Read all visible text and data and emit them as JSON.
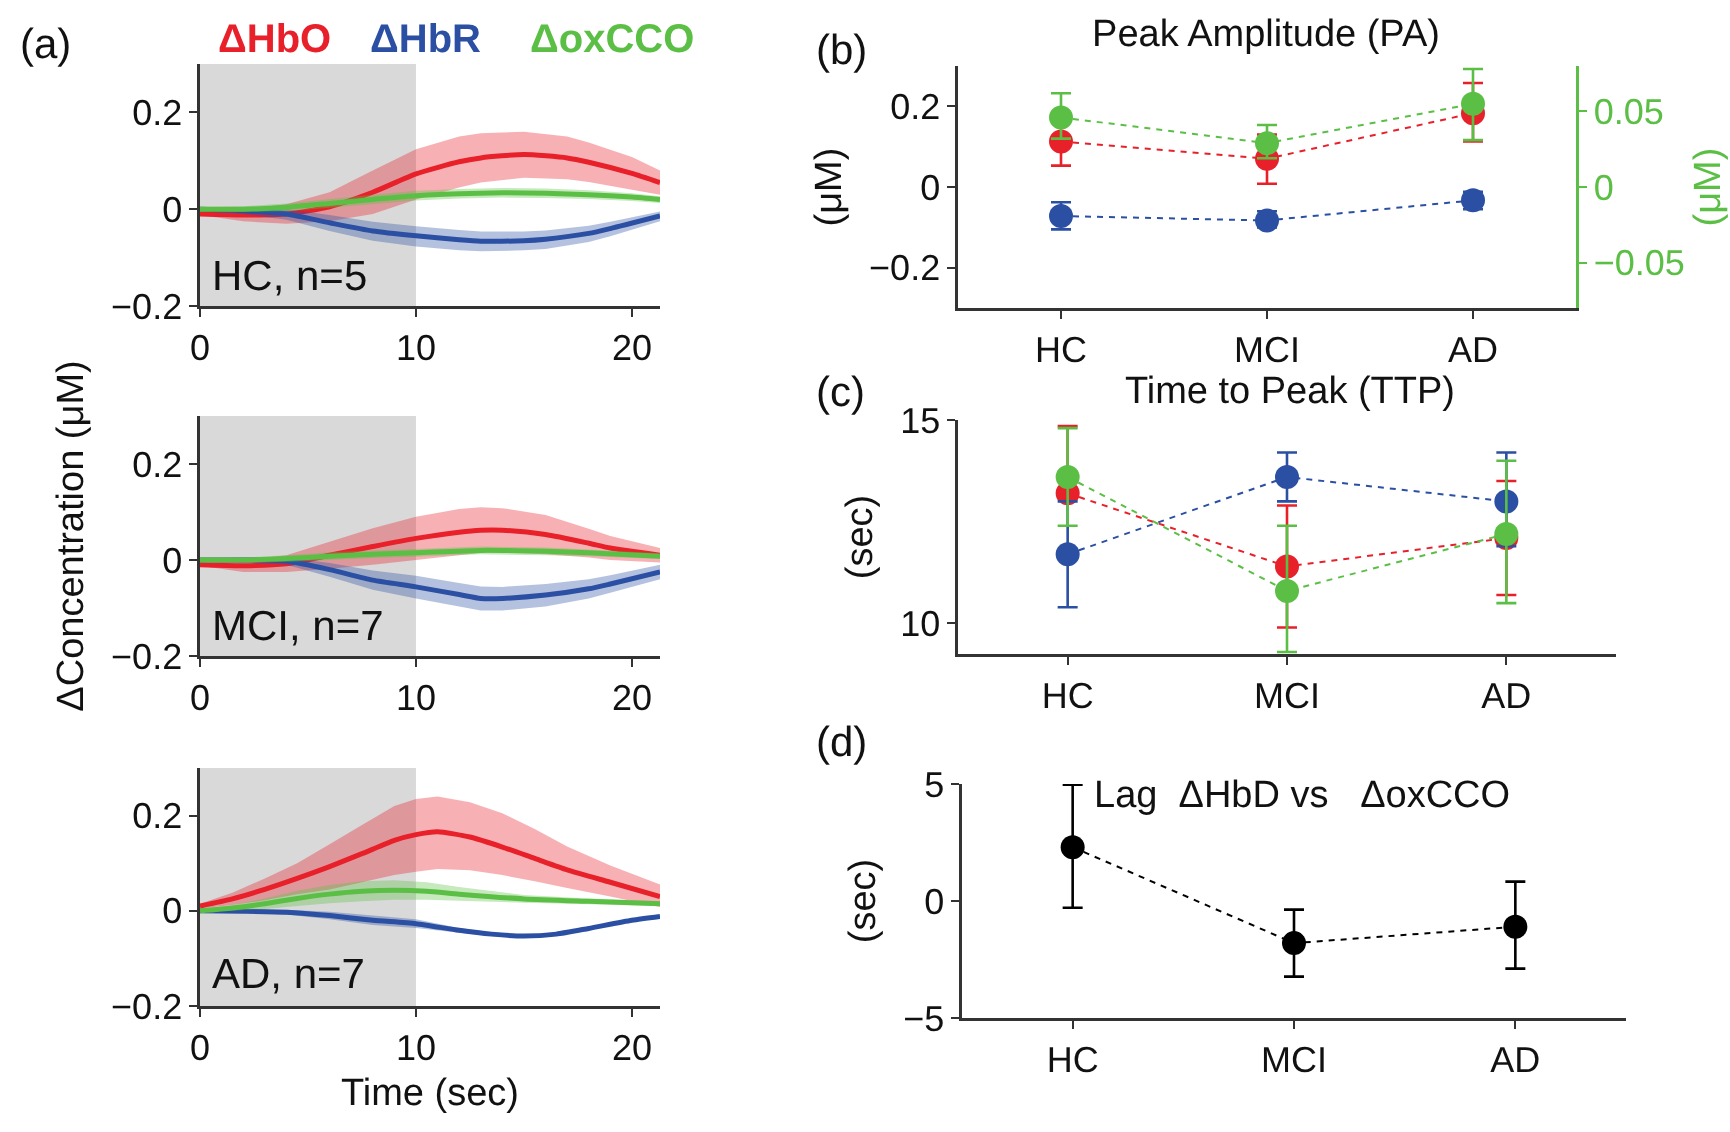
{
  "chart_data": [
    {
      "type": "line",
      "annotations": [
        "(a)",
        "HC, n=5"
      ],
      "xlim": [
        0,
        21.3
      ],
      "xticks": [
        0,
        10,
        20
      ],
      "ylim": [
        -0.2,
        0.3
      ],
      "yticks": [
        -0.2,
        0,
        0.2
      ],
      "marker": "none",
      "line_style": "solid",
      "bands": [
        {
          "axis": "x",
          "from": 0,
          "to": 10,
          "color": "#d9d9d9"
        }
      ],
      "series": [
        {
          "name": "ΔHbO",
          "color": "#e8202a",
          "x": [
            0,
            2,
            4,
            6,
            8,
            10,
            12,
            13,
            15,
            17,
            18,
            20,
            21.3
          ],
          "values": [
            -0.01,
            -0.012,
            -0.01,
            0.005,
            0.035,
            0.073,
            0.098,
            0.106,
            0.113,
            0.106,
            0.097,
            0.074,
            0.055
          ],
          "lower": [
            -0.012,
            -0.025,
            -0.03,
            -0.025,
            -0.01,
            0.02,
            0.045,
            0.055,
            0.065,
            0.062,
            0.056,
            0.04,
            0.03
          ],
          "upper": [
            -0.008,
            0.0,
            0.01,
            0.035,
            0.08,
            0.124,
            0.15,
            0.157,
            0.16,
            0.15,
            0.138,
            0.108,
            0.08
          ]
        },
        {
          "name": "ΔHbR",
          "color": "#2b4fa3",
          "x": [
            0,
            2,
            4,
            6,
            8,
            10,
            12,
            13,
            15,
            16,
            18,
            19,
            21.3
          ],
          "values": [
            0.0,
            -0.003,
            -0.01,
            -0.028,
            -0.045,
            -0.055,
            -0.063,
            -0.066,
            -0.065,
            -0.062,
            -0.05,
            -0.04,
            -0.014
          ],
          "lower": [
            -0.003,
            -0.01,
            -0.022,
            -0.045,
            -0.065,
            -0.077,
            -0.085,
            -0.087,
            -0.085,
            -0.082,
            -0.068,
            -0.056,
            -0.025
          ],
          "upper": [
            0.003,
            0.004,
            0.0,
            -0.012,
            -0.026,
            -0.035,
            -0.043,
            -0.046,
            -0.046,
            -0.044,
            -0.034,
            -0.026,
            -0.005
          ]
        },
        {
          "name": "ΔoxCCO",
          "color": "#5bbf45",
          "x": [
            0,
            2,
            4,
            6,
            8,
            10,
            12,
            14,
            16,
            18,
            20,
            21.3
          ],
          "values": [
            0.0,
            0.0,
            0.004,
            0.012,
            0.02,
            0.028,
            0.032,
            0.034,
            0.033,
            0.03,
            0.025,
            0.02
          ],
          "lower": [
            -0.005,
            -0.006,
            -0.004,
            0.003,
            0.01,
            0.018,
            0.022,
            0.024,
            0.023,
            0.021,
            0.017,
            0.013
          ],
          "upper": [
            0.005,
            0.006,
            0.012,
            0.021,
            0.03,
            0.038,
            0.042,
            0.044,
            0.043,
            0.039,
            0.033,
            0.027
          ]
        }
      ]
    },
    {
      "type": "line",
      "annotations": [
        "MCI, n=7"
      ],
      "ylabel": "ΔConcentration (μM)",
      "xlim": [
        0,
        21.3
      ],
      "xticks": [
        0,
        10,
        20
      ],
      "ylim": [
        -0.2,
        0.3
      ],
      "yticks": [
        -0.2,
        0,
        0.2
      ],
      "marker": "none",
      "line_style": "solid",
      "bands": [
        {
          "axis": "x",
          "from": 0,
          "to": 10,
          "color": "#d9d9d9"
        }
      ],
      "series": [
        {
          "color": "#e8202a",
          "x": [
            0,
            2,
            4,
            6,
            8,
            10,
            12,
            13,
            14,
            16,
            18,
            19,
            21.3
          ],
          "values": [
            -0.01,
            -0.012,
            -0.008,
            0.01,
            0.028,
            0.045,
            0.058,
            0.062,
            0.062,
            0.053,
            0.035,
            0.025,
            0.01
          ],
          "lower": [
            -0.012,
            -0.025,
            -0.025,
            -0.018,
            -0.01,
            0.0,
            0.01,
            0.015,
            0.016,
            0.012,
            0.005,
            0.0,
            -0.005
          ],
          "upper": [
            -0.008,
            0.0,
            0.01,
            0.038,
            0.066,
            0.09,
            0.106,
            0.11,
            0.108,
            0.094,
            0.065,
            0.05,
            0.025
          ]
        },
        {
          "color": "#2b4fa3",
          "x": [
            0,
            2,
            4,
            6,
            8,
            10,
            12,
            13,
            14,
            16,
            18,
            19,
            21.3
          ],
          "values": [
            0.0,
            0.0,
            -0.002,
            -0.02,
            -0.042,
            -0.056,
            -0.072,
            -0.08,
            -0.08,
            -0.073,
            -0.06,
            -0.05,
            -0.025
          ],
          "lower": [
            -0.003,
            -0.005,
            -0.01,
            -0.035,
            -0.062,
            -0.08,
            -0.097,
            -0.105,
            -0.105,
            -0.097,
            -0.08,
            -0.068,
            -0.04
          ],
          "upper": [
            0.003,
            0.005,
            0.005,
            -0.006,
            -0.022,
            -0.033,
            -0.048,
            -0.055,
            -0.056,
            -0.05,
            -0.04,
            -0.032,
            -0.01
          ]
        },
        {
          "color": "#5bbf45",
          "x": [
            0,
            2,
            4,
            6,
            8,
            10,
            13,
            16,
            18,
            21.3
          ],
          "values": [
            0.0,
            0.0,
            0.003,
            0.008,
            0.012,
            0.015,
            0.02,
            0.018,
            0.015,
            0.008
          ],
          "lower": [
            -0.005,
            -0.005,
            -0.004,
            0.0,
            0.004,
            0.007,
            0.012,
            0.01,
            0.008,
            0.002
          ],
          "upper": [
            0.005,
            0.005,
            0.01,
            0.016,
            0.02,
            0.023,
            0.028,
            0.026,
            0.022,
            0.014
          ]
        }
      ]
    },
    {
      "type": "line",
      "annotations": [
        "AD, n=7"
      ],
      "xlabel": "Time (sec)",
      "xlim": [
        0,
        21.3
      ],
      "xticks": [
        0,
        10,
        20
      ],
      "ylim": [
        -0.2,
        0.3
      ],
      "yticks": [
        -0.2,
        0,
        0.2
      ],
      "marker": "none",
      "line_style": "solid",
      "bands": [
        {
          "axis": "x",
          "from": 0,
          "to": 10,
          "color": "#d9d9d9"
        }
      ],
      "series": [
        {
          "color": "#e8202a",
          "x": [
            0,
            1.5,
            3,
            4.5,
            6,
            7.5,
            9,
            10,
            11,
            12.5,
            14,
            15.5,
            17,
            19,
            21.3
          ],
          "values": [
            0.01,
            0.025,
            0.045,
            0.068,
            0.093,
            0.12,
            0.148,
            0.16,
            0.166,
            0.155,
            0.134,
            0.11,
            0.086,
            0.06,
            0.03
          ],
          "lower": [
            0.005,
            0.012,
            0.022,
            0.035,
            0.045,
            0.06,
            0.075,
            0.082,
            0.088,
            0.085,
            0.075,
            0.062,
            0.048,
            0.03,
            0.008
          ],
          "upper": [
            0.015,
            0.038,
            0.068,
            0.1,
            0.14,
            0.18,
            0.22,
            0.235,
            0.24,
            0.228,
            0.205,
            0.172,
            0.135,
            0.095,
            0.055
          ]
        },
        {
          "color": "#2b4fa3",
          "x": [
            0,
            2,
            4,
            6,
            8,
            10,
            12,
            13.5,
            15,
            16.5,
            18,
            20,
            21.3
          ],
          "values": [
            0.0,
            -0.001,
            -0.003,
            -0.01,
            -0.02,
            -0.027,
            -0.041,
            -0.049,
            -0.053,
            -0.049,
            -0.037,
            -0.02,
            -0.012
          ],
          "lower": [
            -0.002,
            -0.004,
            -0.008,
            -0.018,
            -0.03,
            -0.036,
            -0.046,
            -0.053,
            -0.056,
            -0.052,
            -0.04,
            -0.023,
            -0.015
          ],
          "upper": [
            0.002,
            0.002,
            0.002,
            -0.002,
            -0.01,
            -0.018,
            -0.036,
            -0.045,
            -0.05,
            -0.046,
            -0.034,
            -0.017,
            -0.009
          ]
        },
        {
          "color": "#5bbf45",
          "x": [
            0,
            1.5,
            3,
            4.5,
            6,
            7.5,
            9,
            10.5,
            12,
            15,
            18,
            21.3
          ],
          "values": [
            0.0,
            0.006,
            0.015,
            0.026,
            0.035,
            0.041,
            0.043,
            0.041,
            0.035,
            0.025,
            0.02,
            0.015
          ],
          "lower": [
            -0.002,
            0.0,
            0.004,
            0.01,
            0.016,
            0.02,
            0.023,
            0.023,
            0.021,
            0.017,
            0.014,
            0.01
          ],
          "upper": [
            0.002,
            0.012,
            0.026,
            0.042,
            0.054,
            0.062,
            0.064,
            0.06,
            0.05,
            0.033,
            0.026,
            0.02
          ]
        }
      ]
    },
    {
      "type": "line",
      "title": "Peak Amplitude (PA)",
      "annotations": [
        "(b)"
      ],
      "ylabel": "(μM)",
      "y2label": "(μM)",
      "categories": [
        "HC",
        "MCI",
        "AD"
      ],
      "ylim": [
        -0.3,
        0.3
      ],
      "yticks": [
        -0.2,
        0,
        0.2
      ],
      "y2lim": [
        -0.08,
        0.08
      ],
      "y2ticks": [
        -0.05,
        0,
        0.05
      ],
      "marker": "circle",
      "line_style": "dotted",
      "series": [
        {
          "color": "#2b4fa3",
          "values": [
            -0.072,
            -0.083,
            -0.033
          ],
          "errors": [
            [
              -0.105,
              -0.038
            ],
            [
              -0.1,
              -0.06
            ],
            [
              -0.055,
              -0.012
            ]
          ]
        },
        {
          "color": "#e8202a",
          "values": [
            0.113,
            0.07,
            0.183
          ],
          "errors": [
            [
              0.053,
              0.113
            ],
            [
              0.008,
              0.13
            ],
            [
              0.113,
              0.258
            ]
          ]
        },
        {
          "color": "#5bbf45",
          "axis": "y2",
          "values": [
            0.046,
            0.029,
            0.055
          ],
          "errors": [
            [
              0.032,
              0.062
            ],
            [
              0.019,
              0.041
            ],
            [
              0.031,
              0.078
            ]
          ]
        }
      ]
    },
    {
      "type": "line",
      "title": "Time to Peak (TTP)",
      "annotations": [
        "(c)"
      ],
      "ylabel": "(sec)",
      "categories": [
        "HC",
        "MCI",
        "AD"
      ],
      "ylim": [
        9.25,
        15
      ],
      "yticks": [
        10,
        15
      ],
      "marker": "circle",
      "line_style": "dotted",
      "series": [
        {
          "color": "#e8202a",
          "values": [
            13.2,
            11.4,
            12.1
          ],
          "errors": [
            [
              13.2,
              14.85
            ],
            [
              9.9,
              12.9
            ],
            [
              10.7,
              13.5
            ]
          ]
        },
        {
          "color": "#2b4fa3",
          "values": [
            11.7,
            13.6,
            13.0
          ],
          "errors": [
            [
              10.4,
              13.0
            ],
            [
              13.0,
              14.2
            ],
            [
              11.9,
              14.2
            ]
          ]
        },
        {
          "color": "#5bbf45",
          "values": [
            13.6,
            10.8,
            12.2
          ],
          "errors": [
            [
              12.4,
              14.8
            ],
            [
              9.3,
              12.4
            ],
            [
              10.5,
              14.0
            ]
          ]
        }
      ]
    },
    {
      "type": "line",
      "title": "Lag  ΔHbD vs   ΔoxCCO",
      "annotations": [
        "(d)"
      ],
      "ylabel": "(sec)",
      "categories": [
        "HC",
        "MCI",
        "AD"
      ],
      "ylim": [
        -5,
        5
      ],
      "yticks": [
        -5,
        0,
        5
      ],
      "marker": "circle",
      "line_style": "dotted",
      "series": [
        {
          "color": "#000000",
          "values": [
            2.3,
            -1.8,
            -1.1
          ],
          "errors": [
            [
              -0.29,
              4.97
            ],
            [
              -3.23,
              -0.37
            ],
            [
              -2.89,
              0.83
            ]
          ]
        }
      ]
    }
  ]
}
